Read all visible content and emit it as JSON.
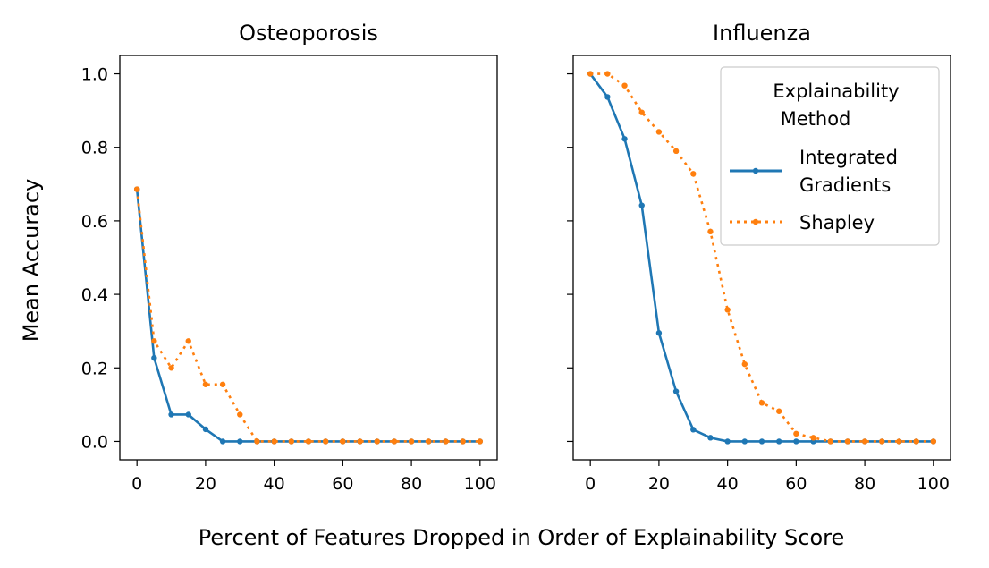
{
  "figure": {
    "ylabel": "Mean Accuracy",
    "xlabel": "Percent of Features Dropped in Order of Explainability Score"
  },
  "legend": {
    "title_line1": "Explainability",
    "title_line2": "Method",
    "entries": [
      {
        "label_line1": "Integrated",
        "label_line2": "Gradients"
      },
      {
        "label_line1": "Shapley",
        "label_line2": ""
      }
    ]
  },
  "colors": {
    "integrated_gradients": "#1f77b4",
    "shapley": "#ff7f0e"
  },
  "chart_data": [
    {
      "type": "line",
      "title": "Osteoporosis",
      "xlabel": "",
      "ylabel": "Mean Accuracy",
      "xlim": [
        -5,
        105
      ],
      "ylim": [
        -0.05,
        1.05
      ],
      "xticks": [
        0,
        20,
        40,
        60,
        80,
        100
      ],
      "yticks": [
        0.0,
        0.2,
        0.4,
        0.6,
        0.8,
        1.0
      ],
      "x": [
        0,
        5,
        10,
        15,
        20,
        25,
        30,
        35,
        40,
        45,
        50,
        55,
        60,
        65,
        70,
        75,
        80,
        85,
        90,
        95,
        100
      ],
      "series": [
        {
          "name": "Integrated Gradients",
          "style": "solid",
          "values": [
            0.686,
            0.227,
            0.073,
            0.073,
            0.033,
            0.0,
            0.0,
            0.0,
            0.0,
            0.0,
            0.0,
            0.0,
            0.0,
            0.0,
            0.0,
            0.0,
            0.0,
            0.0,
            0.0,
            0.0,
            0.0
          ]
        },
        {
          "name": "Shapley",
          "style": "dotted",
          "values": [
            0.686,
            0.273,
            0.2,
            0.273,
            0.155,
            0.155,
            0.073,
            0.0,
            0.0,
            0.0,
            0.0,
            0.0,
            0.0,
            0.0,
            0.0,
            0.0,
            0.0,
            0.0,
            0.0,
            0.0,
            0.0
          ]
        }
      ]
    },
    {
      "type": "line",
      "title": "Influenza",
      "xlabel": "",
      "ylabel": "",
      "xlim": [
        -5,
        105
      ],
      "ylim": [
        -0.05,
        1.05
      ],
      "xticks": [
        0,
        20,
        40,
        60,
        80,
        100
      ],
      "yticks": [
        0.0,
        0.2,
        0.4,
        0.6,
        0.8,
        1.0
      ],
      "x": [
        0,
        5,
        10,
        15,
        20,
        25,
        30,
        35,
        40,
        45,
        50,
        55,
        60,
        65,
        70,
        75,
        80,
        85,
        90,
        95,
        100
      ],
      "series": [
        {
          "name": "Integrated Gradients",
          "style": "solid",
          "values": [
            1.0,
            0.937,
            0.823,
            0.642,
            0.295,
            0.136,
            0.032,
            0.01,
            0.0,
            0.0,
            0.0,
            0.0,
            0.0,
            0.0,
            0.0,
            0.0,
            0.0,
            0.0,
            0.0,
            0.0,
            0.0
          ]
        },
        {
          "name": "Shapley",
          "style": "dotted",
          "values": [
            1.0,
            1.0,
            0.968,
            0.895,
            0.842,
            0.79,
            0.728,
            0.571,
            0.358,
            0.21,
            0.105,
            0.082,
            0.021,
            0.01,
            0.0,
            0.0,
            0.0,
            0.0,
            0.0,
            0.0,
            0.0
          ]
        }
      ]
    }
  ]
}
